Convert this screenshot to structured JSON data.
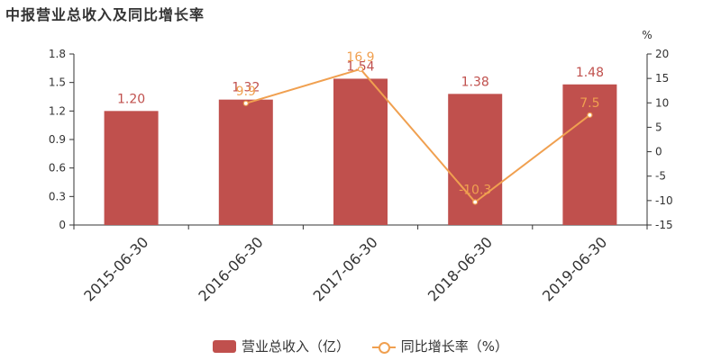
{
  "title": "中报营业总收入及同比增长率",
  "colors": {
    "bar": "#c0504d",
    "line": "#f0a050",
    "axis": "#333333"
  },
  "chart_data": {
    "type": "bar",
    "categories": [
      "2015-06-30",
      "2016-06-30",
      "2017-06-30",
      "2018-06-30",
      "2019-06-30"
    ],
    "series": [
      {
        "name": "营业总收入（亿）",
        "type": "bar",
        "axis": "left",
        "values": [
          1.2,
          1.32,
          1.54,
          1.38,
          1.48
        ],
        "labels": [
          "1.20",
          "1.32",
          "1.54",
          "1.38",
          "1.48"
        ]
      },
      {
        "name": "同比增长率（%）",
        "type": "line",
        "axis": "right",
        "values": [
          null,
          9.9,
          16.9,
          -10.3,
          7.5
        ],
        "labels": [
          "",
          "9.9",
          "16.9",
          "-10.3",
          "7.5"
        ]
      }
    ],
    "y_left": {
      "range": [
        0,
        1.8
      ],
      "ticks": [
        "0",
        "0.3",
        "0.6",
        "0.9",
        "1.2",
        "1.5",
        "1.8"
      ]
    },
    "y_right": {
      "range": [
        -15,
        20
      ],
      "unit": "%",
      "ticks": [
        "-15",
        "-10",
        "-5",
        "0",
        "5",
        "10",
        "15",
        "20"
      ]
    },
    "grid": false,
    "legend": "bottom-center"
  }
}
